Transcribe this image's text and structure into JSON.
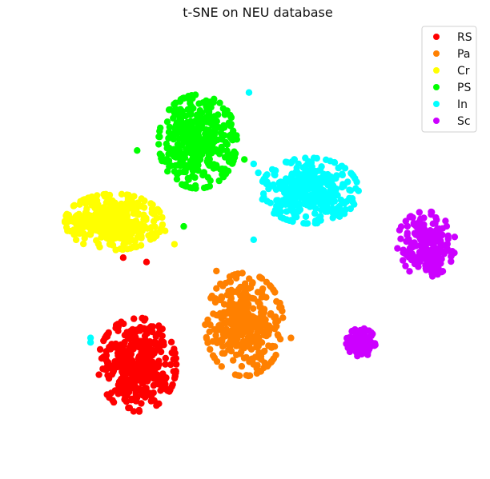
{
  "chart_data": {
    "type": "scatter",
    "title": "t-SNE on NEU database",
    "xlabel": "",
    "ylabel": "",
    "axes_visible": false,
    "grid": false,
    "legend_position": "top-right",
    "xlim": [
      0,
      100
    ],
    "ylim": [
      0,
      100
    ],
    "series": [
      {
        "name": "RS",
        "color": "#ff0000",
        "clusters": [
          {
            "center": [
              26,
              24
            ],
            "spread": [
              8,
              10
            ],
            "count": 420
          }
        ],
        "points": [
          [
            23,
            48
          ],
          [
            28,
            47
          ]
        ]
      },
      {
        "name": "Pa",
        "color": "#ff8000",
        "clusters": [
          {
            "center": [
              49,
              33
            ],
            "spread": [
              8,
              11
            ],
            "count": 380
          }
        ],
        "points": [
          [
            43,
            45
          ],
          [
            59,
            30
          ]
        ]
      },
      {
        "name": "Cr",
        "color": "#ffff00",
        "clusters": [
          {
            "center": [
              21,
              56
            ],
            "spread": [
              10,
              6
            ],
            "count": 430
          }
        ],
        "points": [
          [
            32,
            54
          ],
          [
            34,
            51
          ]
        ]
      },
      {
        "name": "PS",
        "color": "#00ff00",
        "clusters": [
          {
            "center": [
              39,
              74
            ],
            "spread": [
              8,
              10
            ],
            "count": 380
          }
        ],
        "points": [
          [
            26,
            72
          ],
          [
            36,
            55
          ],
          [
            49,
            70
          ]
        ]
      },
      {
        "name": "In",
        "color": "#00ffff",
        "clusters": [
          {
            "center": [
              63,
              63
            ],
            "spread": [
              10,
              7
            ],
            "count": 360
          }
        ],
        "points": [
          [
            16,
            30
          ],
          [
            16,
            29
          ],
          [
            50,
            85
          ],
          [
            51,
            69
          ],
          [
            52,
            67
          ],
          [
            51,
            52
          ]
        ]
      },
      {
        "name": "Sc",
        "color": "#cc00ff",
        "clusters": [
          {
            "center": [
              88,
              51
            ],
            "spread": [
              6,
              7
            ],
            "count": 190
          },
          {
            "center": [
              74,
              29
            ],
            "spread": [
              3,
              3
            ],
            "count": 110
          }
        ],
        "points": []
      }
    ]
  }
}
